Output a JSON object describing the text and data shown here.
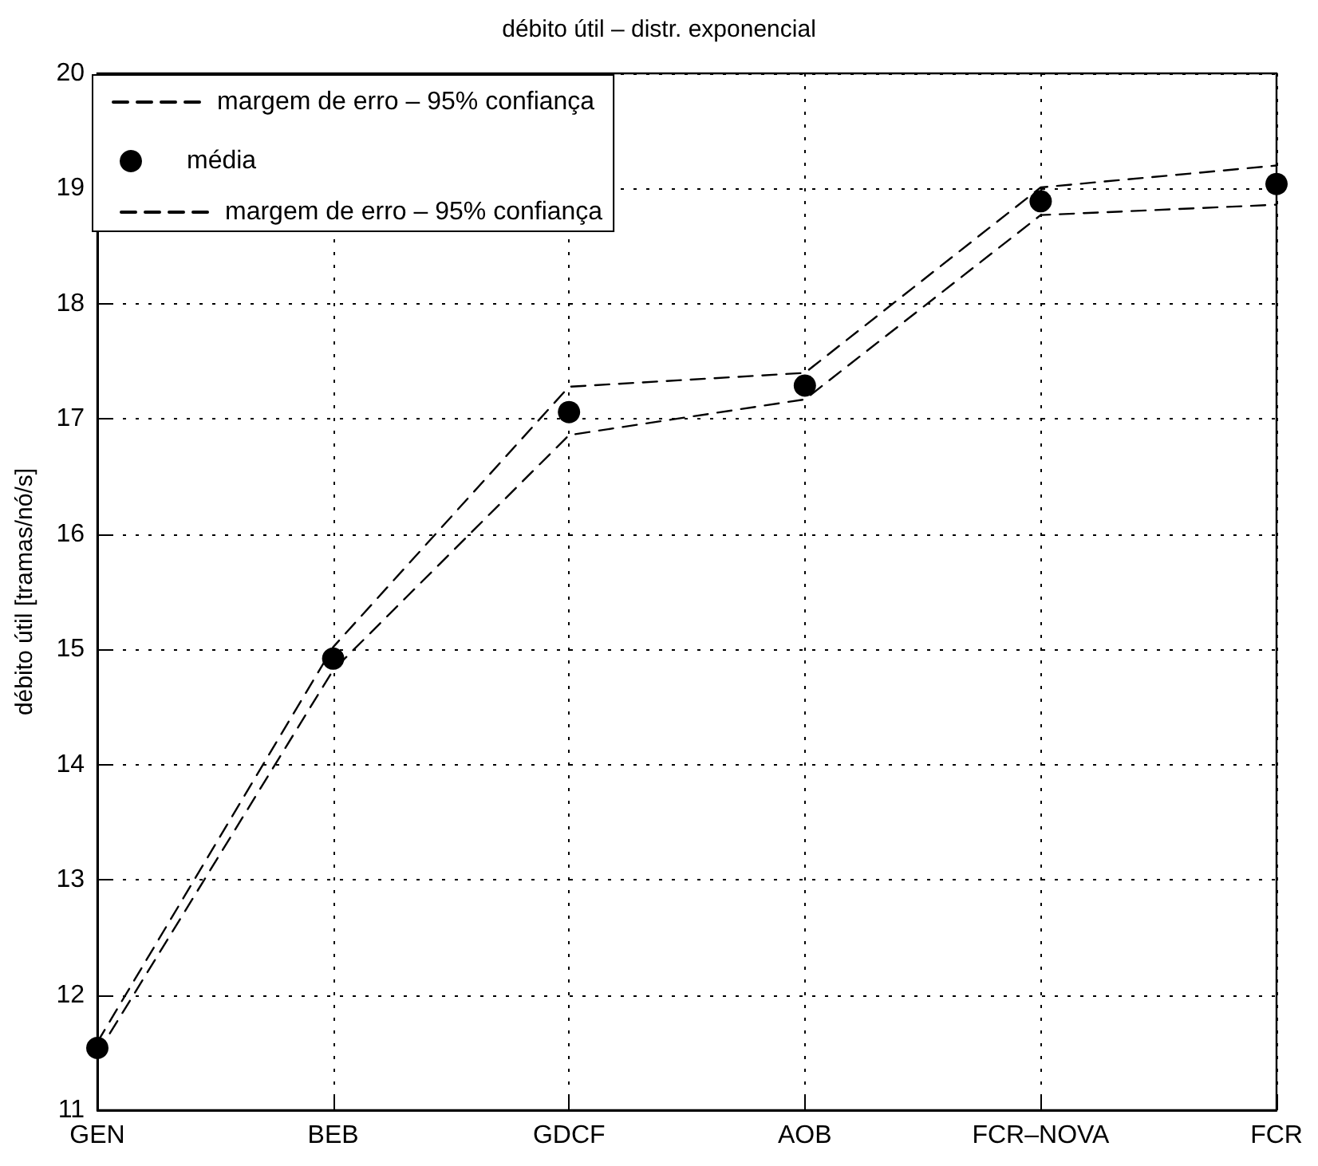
{
  "chart_data": {
    "type": "line",
    "title": "débito útil – distr. exponencial",
    "ylabel": "débito útil [tramas/nó/s]",
    "categories": [
      "GEN",
      "BEB",
      "GDCF",
      "AOB",
      "FCR–NOVA",
      "FCR"
    ],
    "ylim": [
      11,
      20
    ],
    "yticks": [
      11,
      12,
      13,
      14,
      15,
      16,
      17,
      18,
      19,
      20
    ],
    "grid": true,
    "legend": "top left",
    "series": [
      {
        "name": "margem de erro – 95% confiança",
        "type": "line",
        "color": "#000000",
        "line_style": "dashed",
        "marker": "none",
        "values": [
          11.59,
          15.02,
          17.28,
          17.4,
          19.01,
          19.2
        ]
      },
      {
        "name": "média",
        "type": "scatter",
        "color": "#000000",
        "marker": "circle",
        "values": [
          11.54,
          14.92,
          17.06,
          17.29,
          18.89,
          19.04
        ]
      },
      {
        "name": "margem de erro – 95% confiança",
        "color": "#000000",
        "line_style": "dashed",
        "marker": "none",
        "values": [
          11.49,
          14.82,
          16.86,
          17.17,
          18.77,
          18.86
        ]
      }
    ]
  }
}
